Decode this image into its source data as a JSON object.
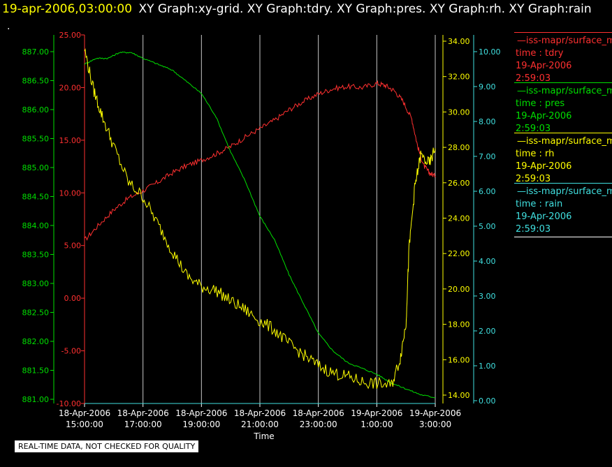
{
  "header": {
    "timestamp": "19-apr-2006,03:00:00",
    "titles": "XY Graph:xy-grid.  XY Graph:tdry.  XY Graph:pres.  XY Graph:rh.  XY Graph:rain",
    "dot": "."
  },
  "legend": [
    {
      "source": "—iss-mapr/surface_m",
      "label": "time : tdry",
      "date": "19-Apr-2006",
      "time": "2:59:03",
      "color": "#ff3030"
    },
    {
      "source": "—iss-mapr/surface_m",
      "label": "time : pres",
      "date": "19-Apr-2006",
      "time": "2:59:03",
      "color": "#00e000"
    },
    {
      "source": "—iss-mapr/surface_m",
      "label": "time : rh",
      "date": "19-Apr-2006",
      "time": "2:59:03",
      "color": "#ffff00"
    },
    {
      "source": "—iss-mapr/surface_m",
      "label": "time : rain",
      "date": "19-Apr-2006",
      "time": "2:59:03",
      "color": "#40e0e0"
    }
  ],
  "footer_note": "REAL-TIME DATA, NOT CHECKED FOR QUALITY",
  "chart_data": {
    "type": "line",
    "xlabel": "Time",
    "x_ticks": [
      {
        "date": "18-Apr-2006",
        "time": "15:00:00"
      },
      {
        "date": "18-Apr-2006",
        "time": "17:00:00"
      },
      {
        "date": "18-Apr-2006",
        "time": "19:00:00"
      },
      {
        "date": "18-Apr-2006",
        "time": "21:00:00"
      },
      {
        "date": "18-Apr-2006",
        "time": "23:00:00"
      },
      {
        "date": "19-Apr-2006",
        "time": "1:00:00"
      },
      {
        "date": "19-Apr-2006",
        "time": "3:00:00"
      }
    ],
    "x_hours": [
      0,
      2,
      4,
      6,
      8,
      10,
      12
    ],
    "grid": "vertical",
    "axes": {
      "tdry": {
        "ticks": [
          "25.00",
          "20.00",
          "15.00",
          "10.00",
          "5.00",
          "0.00",
          "-5.00",
          "-10.00"
        ],
        "ylim": [
          -10,
          25
        ],
        "color": "#ff3030"
      },
      "pres": {
        "ticks": [
          "887.00",
          "886.50",
          "886.00",
          "885.50",
          "885.00",
          "884.50",
          "884.00",
          "883.50",
          "883.00",
          "882.50",
          "882.00",
          "881.50",
          "881.00"
        ],
        "ylim": [
          881.0,
          887.3
        ],
        "color": "#00e000"
      },
      "rh": {
        "ticks": [
          "34.00",
          "32.00",
          "30.00",
          "28.00",
          "26.00",
          "24.00",
          "22.00",
          "20.00",
          "18.00",
          "16.00",
          "14.00"
        ],
        "ylim": [
          13.5,
          34.0
        ],
        "color": "#ffff00"
      },
      "rain": {
        "ticks": [
          "10.00",
          "9.00",
          "8.00",
          "7.00",
          "6.00",
          "5.00",
          "4.00",
          "3.00",
          "2.00",
          "1.00",
          "0.00"
        ],
        "ylim": [
          0,
          10.3
        ],
        "color": "#40e0e0"
      }
    },
    "series": [
      {
        "name": "time : tdry",
        "axis": "tdry",
        "x": [
          0,
          0.5,
          1,
          1.5,
          2,
          2.5,
          3,
          3.5,
          4,
          4.5,
          5,
          5.5,
          6,
          6.5,
          7,
          7.5,
          8,
          8.5,
          9,
          9.5,
          10,
          10.3,
          10.6,
          10.9,
          11.2,
          11.4,
          11.6,
          11.8,
          12
        ],
        "y": [
          5.5,
          7.0,
          8.4,
          9.5,
          10.2,
          11.0,
          11.9,
          12.6,
          13.1,
          13.7,
          14.4,
          15.3,
          16.1,
          16.9,
          17.9,
          18.7,
          19.4,
          19.9,
          20.1,
          20.0,
          20.4,
          20.2,
          19.7,
          18.7,
          17.0,
          14.4,
          12.6,
          11.9,
          11.6
        ]
      },
      {
        "name": "time : pres",
        "axis": "pres",
        "x": [
          0,
          0.4,
          0.8,
          1.2,
          1.6,
          2,
          2.5,
          3,
          3.5,
          4,
          4.5,
          5,
          5.5,
          6,
          6.5,
          7,
          7.5,
          8,
          8.5,
          9,
          9.5,
          10,
          10.5,
          11,
          11.5,
          12
        ],
        "y": [
          886.8,
          886.9,
          886.9,
          887.0,
          887.0,
          886.9,
          886.8,
          886.7,
          886.5,
          886.3,
          885.9,
          885.3,
          884.8,
          884.2,
          883.8,
          883.2,
          882.7,
          882.2,
          881.9,
          881.7,
          881.6,
          881.5,
          881.35,
          881.25,
          881.15,
          881.1
        ]
      },
      {
        "name": "time : rh",
        "axis": "rh",
        "x": [
          0,
          0.3,
          0.6,
          1,
          1.5,
          2,
          2.5,
          3,
          3.5,
          4,
          4.5,
          5,
          5.5,
          6,
          6.5,
          7,
          7.5,
          8,
          8.5,
          9,
          9.5,
          10,
          10.5,
          10.8,
          11.0,
          11.1,
          11.3,
          11.5,
          11.8,
          12
        ],
        "y": [
          33.2,
          31.0,
          29.5,
          27.8,
          25.8,
          25.0,
          23.5,
          22.0,
          20.6,
          20.0,
          19.8,
          19.2,
          18.7,
          18.1,
          17.6,
          16.8,
          16.2,
          15.6,
          15.2,
          15.0,
          14.7,
          14.6,
          14.5,
          16.0,
          18.0,
          22.0,
          25.5,
          27.3,
          26.8,
          27.7
        ]
      },
      {
        "name": "time : rain",
        "axis": "rain",
        "x": [
          0,
          12
        ],
        "y": [
          0.0,
          0.0
        ]
      }
    ]
  }
}
